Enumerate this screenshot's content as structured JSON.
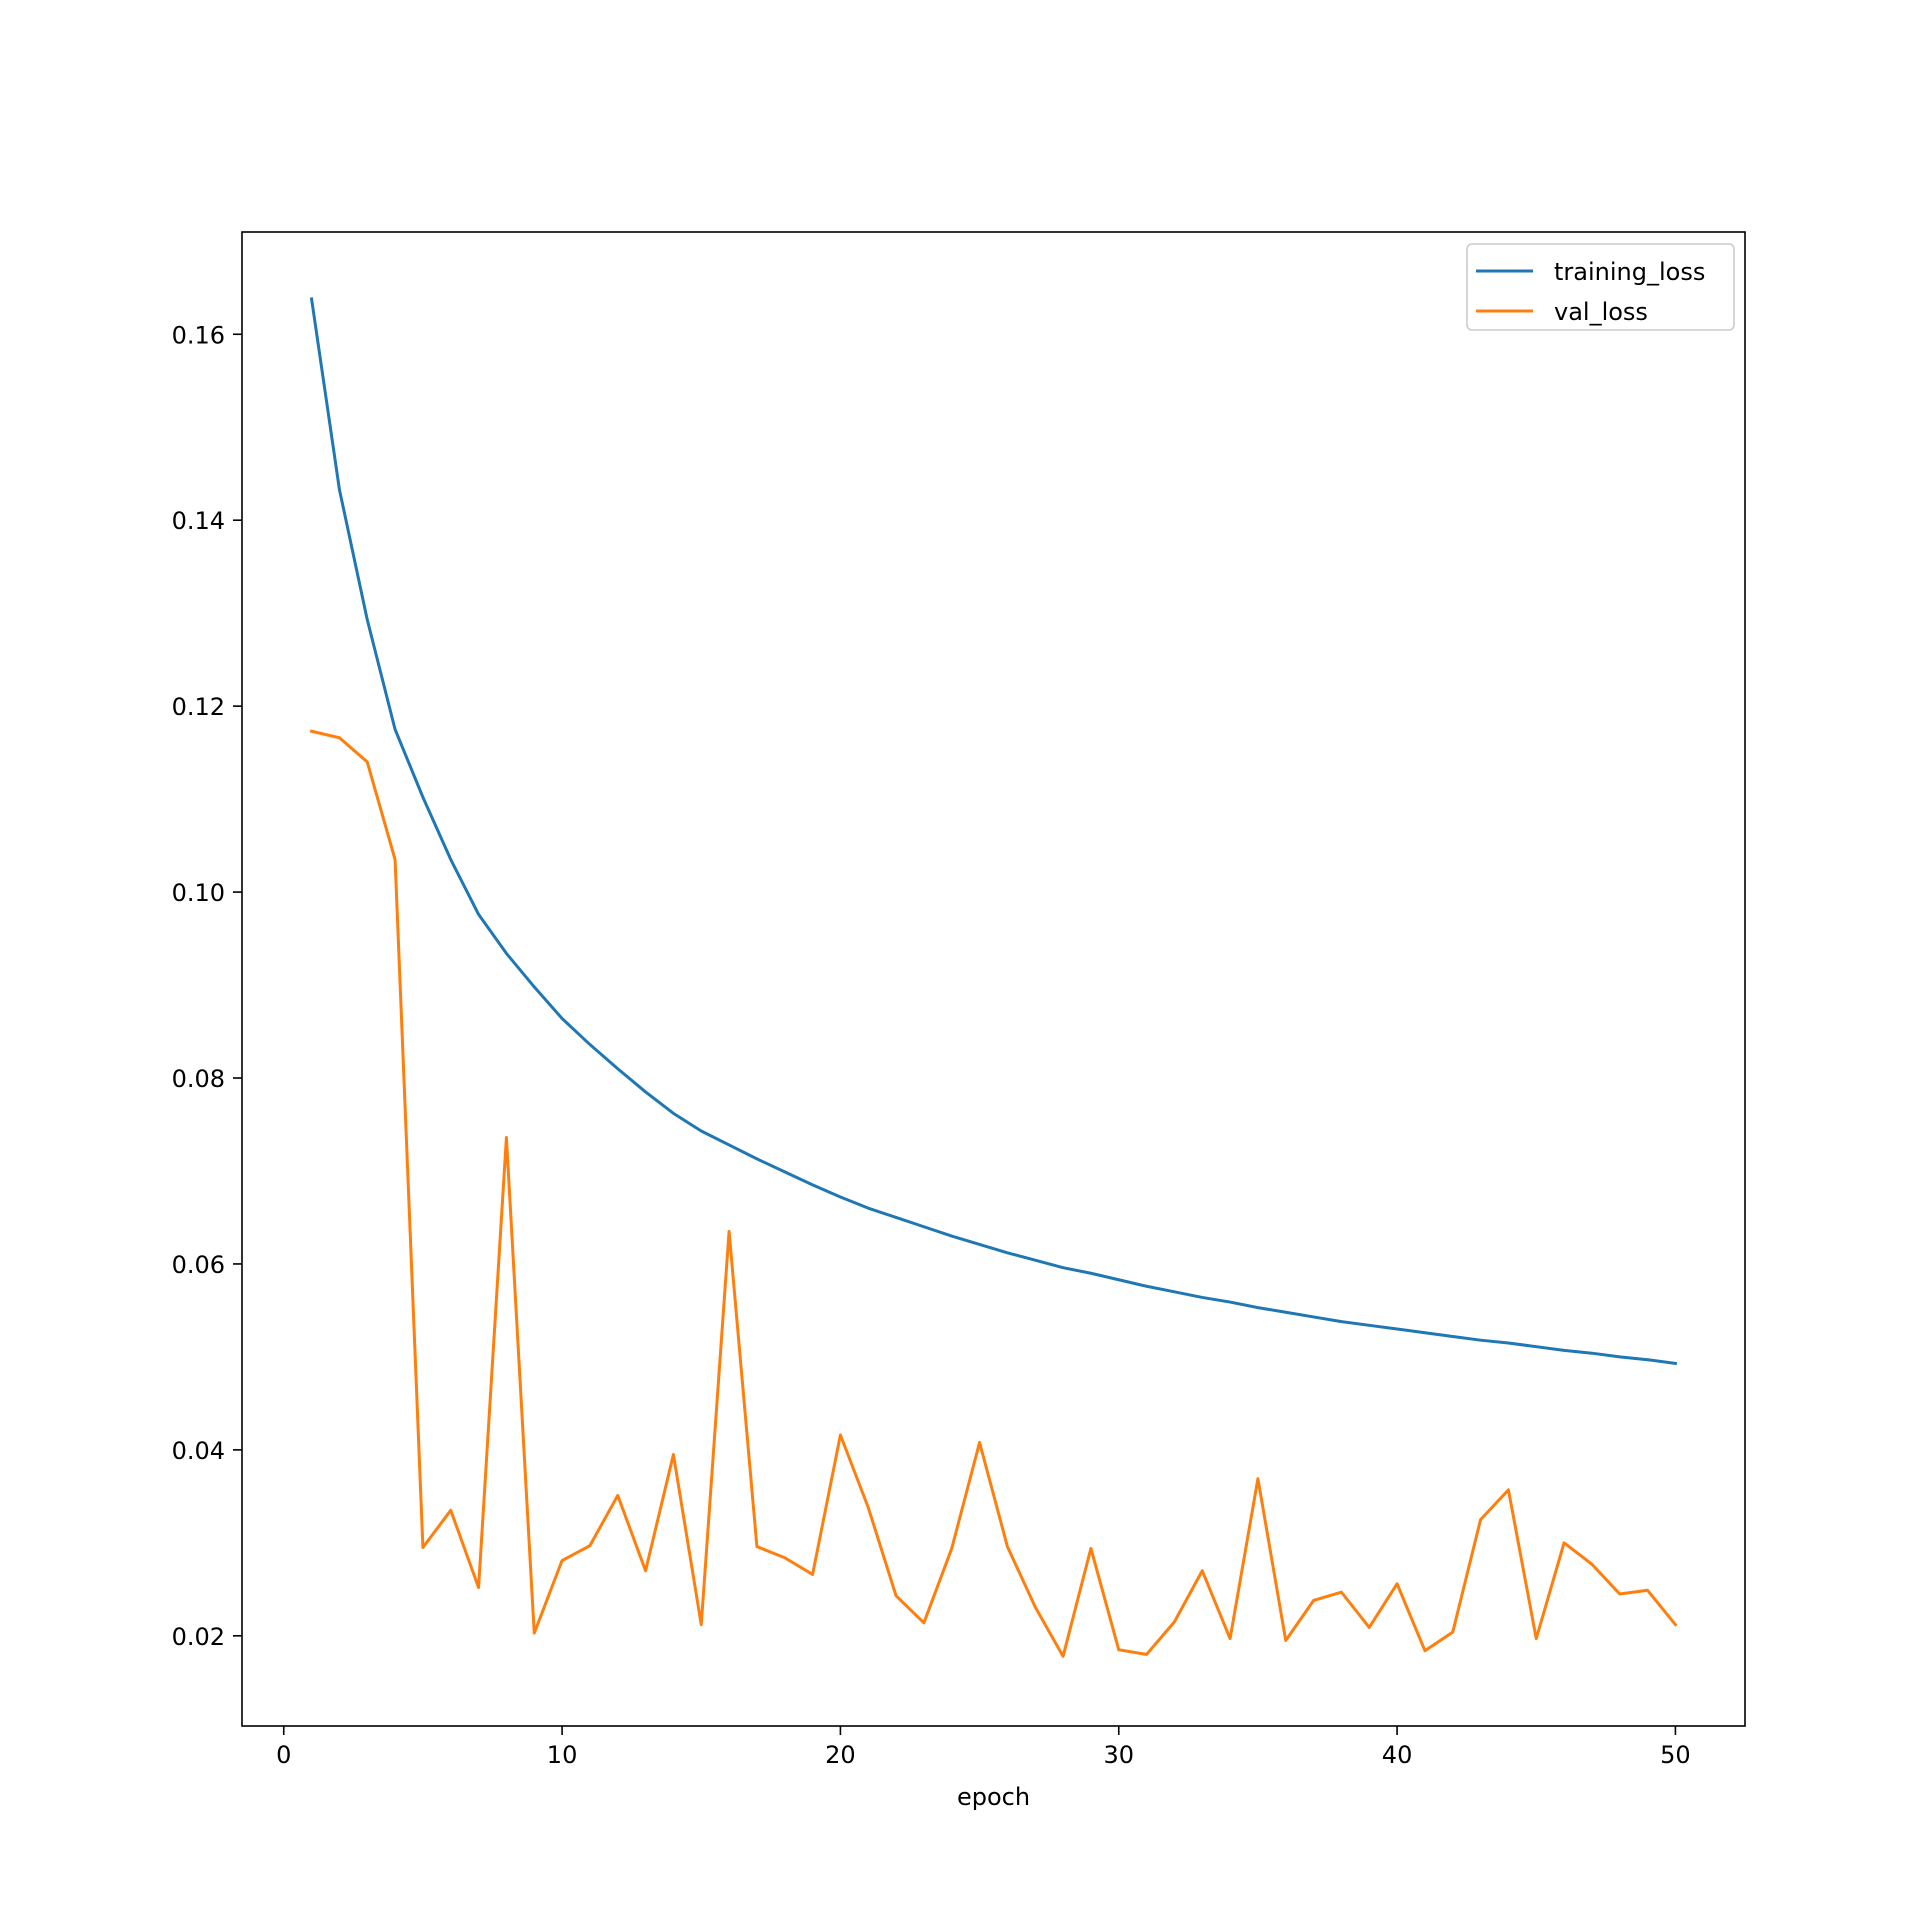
{
  "chart_data": {
    "type": "line",
    "title": "",
    "xlabel": "epoch",
    "ylabel": "",
    "xlim": [
      -1.5,
      52.5
    ],
    "ylim": [
      0.0103,
      0.171
    ],
    "xticks": [
      0,
      10,
      20,
      30,
      40,
      50
    ],
    "yticks": [
      0.02,
      0.04,
      0.06,
      0.08,
      0.1,
      0.12,
      0.14,
      0.16
    ],
    "xtick_labels": [
      "0",
      "10",
      "20",
      "30",
      "40",
      "50"
    ],
    "ytick_labels": [
      "0.02",
      "0.04",
      "0.06",
      "0.08",
      "0.10",
      "0.12",
      "0.14",
      "0.16"
    ],
    "grid": false,
    "legend_position": "top-right",
    "x": [
      1,
      2,
      3,
      4,
      5,
      6,
      7,
      8,
      9,
      10,
      11,
      12,
      13,
      14,
      15,
      16,
      17,
      18,
      19,
      20,
      21,
      22,
      23,
      24,
      25,
      26,
      27,
      28,
      29,
      30,
      31,
      32,
      33,
      34,
      35,
      36,
      37,
      38,
      39,
      40,
      41,
      42,
      43,
      44,
      45,
      46,
      47,
      48,
      49,
      50
    ],
    "series": [
      {
        "name": "training_loss",
        "color": "#1f77b4",
        "values": [
          0.1638,
          0.1433,
          0.1293,
          0.1175,
          0.1102,
          0.1035,
          0.0976,
          0.0934,
          0.0898,
          0.0864,
          0.0836,
          0.081,
          0.0785,
          0.0762,
          0.0743,
          0.0728,
          0.0713,
          0.0699,
          0.0685,
          0.0672,
          0.066,
          0.065,
          0.064,
          0.063,
          0.0621,
          0.0612,
          0.0604,
          0.0596,
          0.059,
          0.0583,
          0.0576,
          0.057,
          0.0564,
          0.0559,
          0.0553,
          0.0548,
          0.0543,
          0.0538,
          0.0534,
          0.053,
          0.0526,
          0.0522,
          0.0518,
          0.0515,
          0.0511,
          0.0507,
          0.0504,
          0.05,
          0.0497,
          0.0493
        ]
      },
      {
        "name": "val_loss",
        "color": "#ff7f0e",
        "values": [
          0.1173,
          0.1166,
          0.114,
          0.1035,
          0.0295,
          0.0335,
          0.0252,
          0.0736,
          0.0203,
          0.0281,
          0.0297,
          0.0351,
          0.027,
          0.0395,
          0.0212,
          0.0635,
          0.0296,
          0.0284,
          0.0266,
          0.0416,
          0.0338,
          0.0243,
          0.0214,
          0.0294,
          0.0408,
          0.0296,
          0.0231,
          0.0178,
          0.0294,
          0.0185,
          0.018,
          0.0215,
          0.027,
          0.0197,
          0.0369,
          0.0195,
          0.0238,
          0.0247,
          0.0209,
          0.0256,
          0.0184,
          0.0204,
          0.0325,
          0.0357,
          0.0197,
          0.03,
          0.0277,
          0.0245,
          0.0249,
          0.0212
        ]
      }
    ]
  }
}
